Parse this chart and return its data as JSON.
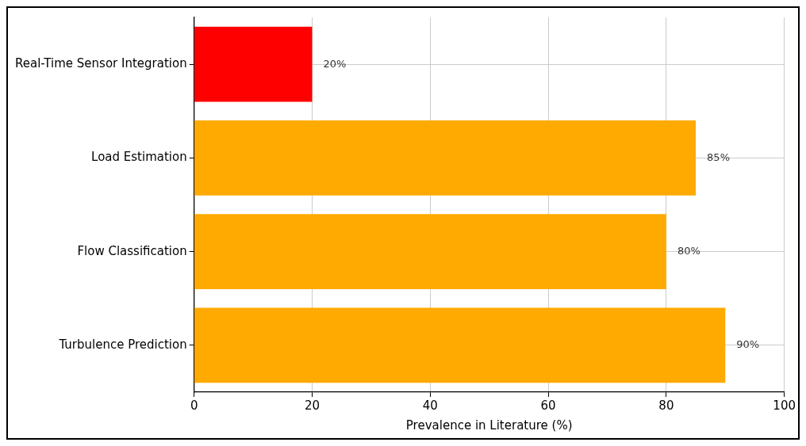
{
  "chart_data": {
    "type": "bar",
    "orientation": "horizontal",
    "xlabel": "Prevalence in Literature (%)",
    "categories": [
      "Real-Time Sensor Integration",
      "Load Estimation",
      "Flow Classification",
      "Turbulence Prediction"
    ],
    "values": [
      20,
      85,
      80,
      90
    ],
    "colors": [
      "#ff0000",
      "#ffaa00",
      "#ffaa00",
      "#ffaa00"
    ],
    "value_labels": [
      "20%",
      "85%",
      "80%",
      "90%"
    ],
    "xlim": [
      0,
      100
    ],
    "xticks": [
      0,
      20,
      40,
      60,
      80,
      100
    ],
    "grid": true,
    "legend": false
  }
}
